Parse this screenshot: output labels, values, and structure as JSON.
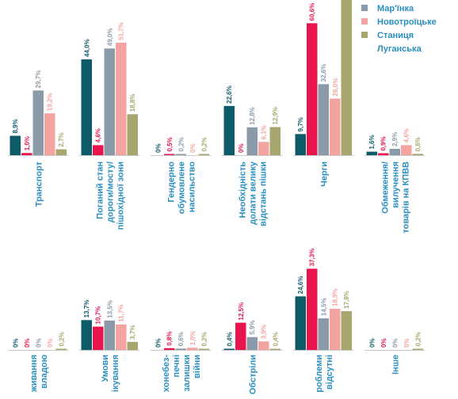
{
  "chart_data": {
    "type": "bar",
    "orientation": "vertical-with-rotated-labels",
    "series": [
      {
        "name": "",
        "color": "#0d5a68"
      },
      {
        "name": "",
        "color": "#e8144e"
      },
      {
        "name": "Мар'їнка",
        "color": "#8a9aa8"
      },
      {
        "name": "Новотроїцьке",
        "color": "#f3a3a0"
      },
      {
        "name": "Станиця Луганська",
        "color": "#a6a66e"
      }
    ],
    "legend": {
      "placement": "top-right",
      "entries": [
        {
          "series": 2,
          "lines": [
            "Мар'їнка"
          ]
        },
        {
          "series": 3,
          "lines": [
            "Новотроїцьке"
          ]
        },
        {
          "series": 4,
          "lines": [
            "Станиця",
            "Луганська"
          ]
        }
      ]
    },
    "panels": [
      {
        "categories": [
          {
            "lines": [
              "Транспорт"
            ],
            "values": [
              8.9,
              1.0,
              29.7,
              19.2,
              2.7
            ],
            "labels": [
              "8,9%",
              "1,0%",
              "29,7%",
              "19,2%",
              "2,7%"
            ]
          },
          {
            "lines": [
              "Поганий стан",
              "дороги/мосту/",
              "пішохідної зони"
            ],
            "values": [
              44.0,
              4.6,
              49.0,
              51.7,
              18.8
            ],
            "labels": [
              "44,0%",
              "4,6%",
              "49,0%",
              "51,7%",
              "18,8%"
            ]
          },
          {
            "lines": [
              "Гендерно",
              "обумовлене",
              "насильство"
            ],
            "values": [
              0,
              0.5,
              0.2,
              0,
              0.2
            ],
            "labels": [
              "0%",
              "0,5%",
              "0,2%",
              "0%",
              "0,2%"
            ]
          },
          {
            "lines": [
              "Необхідність",
              "долати велику",
              "відстань пішки"
            ],
            "values": [
              22.6,
              0,
              12.8,
              6.1,
              12.9
            ],
            "labels": [
              "22,6%",
              "0%",
              "12,8%",
              "6,1%",
              "12,9%"
            ]
          },
          {
            "lines": [
              "Черги"
            ],
            "values": [
              9.7,
              60.6,
              32.6,
              26.0,
              80.0
            ],
            "labels": [
              "9,7%",
              "60,6%",
              "32,6%",
              "26,0%",
              ""
            ]
          },
          {
            "lines": [
              "Обмеження/",
              "вилучення",
              "товарів на КПВВ"
            ],
            "values": [
              1.6,
              0.9,
              2.9,
              4.6,
              0.6
            ],
            "labels": [
              "1,6%",
              "0,9%",
              "2,9%",
              "4,6%",
              "0,6%"
            ]
          }
        ]
      },
      {
        "categories": [
          {
            "lines": [
              "живання",
              "владою"
            ],
            "values": [
              0,
              0,
              0,
              0,
              0.2
            ],
            "labels": [
              "0%",
              "0%",
              "0%",
              "0%",
              "0,2%"
            ]
          },
          {
            "lines": [
              "Умови",
              "ікування"
            ],
            "values": [
              13.7,
              10.7,
              13.5,
              11.7,
              3.7
            ],
            "labels": [
              "13,7%",
              "10,7%",
              "13,5%",
              "11,7%",
              "3,7%"
            ]
          },
          {
            "lines": [
              "хонебез-",
              "печні",
              "залишки",
              "війни"
            ],
            "values": [
              0,
              0.8,
              0.6,
              1.0,
              0.2
            ],
            "labels": [
              "0%",
              "0,8%",
              "0,6%",
              "1,0%",
              "0,2%"
            ]
          },
          {
            "lines": [
              "Обстріли"
            ],
            "values": [
              0.4,
              12.5,
              5.9,
              3.9,
              0.4
            ],
            "labels": [
              "0,4%",
              "12,5%",
              "5,9%",
              "3,9%",
              "0,4%"
            ]
          },
          {
            "lines": [
              "роблеми",
              "відсутні"
            ],
            "values": [
              24.6,
              37.3,
              14.5,
              18.9,
              17.8
            ],
            "labels": [
              "24,6%",
              "37,3%",
              "14,5%",
              "18,9%",
              "17,8%"
            ]
          },
          {
            "lines": [
              "Інше"
            ],
            "values": [
              0,
              0,
              0,
              0,
              0.2
            ],
            "labels": [
              "0%",
              "0%",
              "0%",
              "0%",
              "0,2%"
            ]
          }
        ]
      }
    ]
  }
}
